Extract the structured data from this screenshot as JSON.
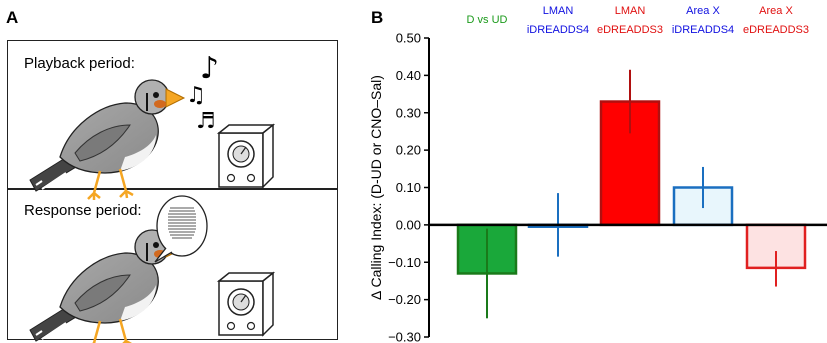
{
  "panel_a": {
    "letter": "A",
    "playback_label": "Playback period:",
    "response_label": "Response period:",
    "icons": [
      "zebra-finch",
      "music-notes",
      "speaker",
      "speech-bubble-song"
    ]
  },
  "panel_b": {
    "letter": "B"
  },
  "chart_data": {
    "type": "bar",
    "ylabel": "Δ Calling Index: (D-UD or CNO–Sal)",
    "ylim": [
      -0.3,
      0.5
    ],
    "yticks": [
      "0.50",
      "0.40",
      "0.30",
      "0.20",
      "0.10",
      "0.00",
      "−0.10",
      "−0.20",
      "−0.30"
    ],
    "ytick_values": [
      0.5,
      0.4,
      0.3,
      0.2,
      0.1,
      0.0,
      -0.1,
      -0.2,
      -0.3
    ],
    "bars": [
      {
        "label_line1": "D vs UD",
        "label_line2": "",
        "label_color": "#1a9a1a",
        "value": -0.13,
        "err_low": -0.25,
        "err_high": -0.01,
        "fill": "#1aa83a",
        "stroke": "#1a7a1a"
      },
      {
        "label_line1": "LMAN",
        "label_line2": "iDREADDS4",
        "label_color": "#1010e0",
        "value": -0.005,
        "err_low": -0.085,
        "err_high": 0.085,
        "fill": "#ffffff",
        "stroke": "#1a6fc0"
      },
      {
        "label_line1": "LMAN",
        "label_line2": "eDREADDS3",
        "label_color": "#e01010",
        "value": 0.33,
        "err_low": 0.245,
        "err_high": 0.415,
        "fill": "#ff0000",
        "stroke": "#b01010"
      },
      {
        "label_line1": "Area X",
        "label_line2": "iDREADDS4",
        "label_color": "#1010e0",
        "value": 0.1,
        "err_low": 0.045,
        "err_high": 0.155,
        "fill": "#e8f6fc",
        "stroke": "#1a6fc0"
      },
      {
        "label_line1": "Area X",
        "label_line2": "eDREADDS3",
        "label_color": "#e01010",
        "value": -0.115,
        "err_low": -0.165,
        "err_high": -0.07,
        "fill": "#fde2e2",
        "stroke": "#e02020"
      }
    ]
  }
}
